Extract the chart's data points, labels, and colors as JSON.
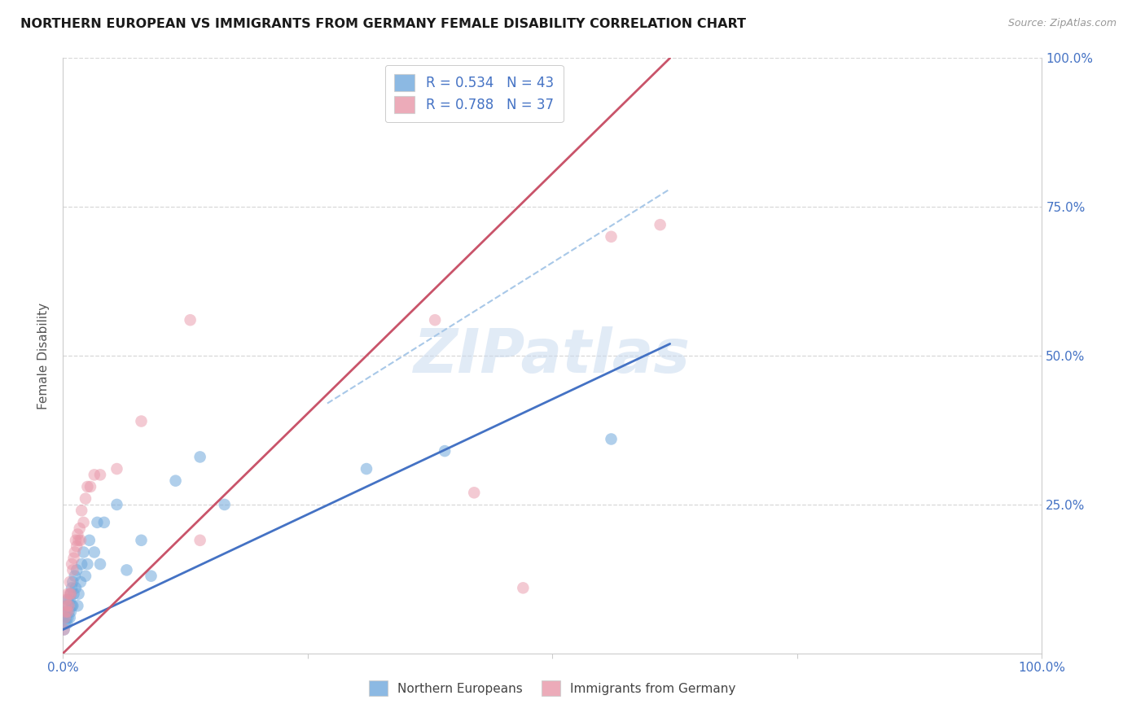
{
  "title": "NORTHERN EUROPEAN VS IMMIGRANTS FROM GERMANY FEMALE DISABILITY CORRELATION CHART",
  "source": "Source: ZipAtlas.com",
  "ylabel": "Female Disability",
  "watermark": "ZIPatlas",
  "legend1_label": "R = 0.534   N = 43",
  "legend2_label": "R = 0.788   N = 37",
  "blue_color": "#6fa8dc",
  "pink_color": "#e896a8",
  "blue_line_color": "#4472c4",
  "pink_line_color": "#c9546a",
  "dashed_line_color": "#a8c8e8",
  "axis_label_color": "#4472c4",
  "blue_scatter_x": [
    0.001,
    0.002,
    0.002,
    0.003,
    0.004,
    0.004,
    0.005,
    0.005,
    0.006,
    0.007,
    0.007,
    0.008,
    0.008,
    0.009,
    0.009,
    0.01,
    0.01,
    0.011,
    0.012,
    0.013,
    0.014,
    0.015,
    0.016,
    0.018,
    0.019,
    0.021,
    0.023,
    0.025,
    0.027,
    0.032,
    0.035,
    0.038,
    0.042,
    0.055,
    0.065,
    0.08,
    0.09,
    0.115,
    0.14,
    0.165,
    0.31,
    0.39,
    0.56
  ],
  "blue_scatter_y": [
    0.04,
    0.05,
    0.07,
    0.06,
    0.05,
    0.08,
    0.06,
    0.09,
    0.07,
    0.06,
    0.09,
    0.07,
    0.1,
    0.08,
    0.11,
    0.08,
    0.12,
    0.1,
    0.13,
    0.11,
    0.14,
    0.08,
    0.1,
    0.12,
    0.15,
    0.17,
    0.13,
    0.15,
    0.19,
    0.17,
    0.22,
    0.15,
    0.22,
    0.25,
    0.14,
    0.19,
    0.13,
    0.29,
    0.33,
    0.25,
    0.31,
    0.34,
    0.36
  ],
  "pink_scatter_x": [
    0.001,
    0.002,
    0.003,
    0.003,
    0.004,
    0.005,
    0.005,
    0.006,
    0.007,
    0.007,
    0.008,
    0.009,
    0.01,
    0.011,
    0.012,
    0.013,
    0.014,
    0.015,
    0.016,
    0.017,
    0.018,
    0.019,
    0.021,
    0.023,
    0.025,
    0.028,
    0.032,
    0.038,
    0.055,
    0.08,
    0.13,
    0.14,
    0.38,
    0.42,
    0.47,
    0.56,
    0.61
  ],
  "pink_scatter_y": [
    0.04,
    0.06,
    0.07,
    0.09,
    0.08,
    0.07,
    0.1,
    0.08,
    0.1,
    0.12,
    0.1,
    0.15,
    0.14,
    0.16,
    0.17,
    0.19,
    0.18,
    0.2,
    0.19,
    0.21,
    0.19,
    0.24,
    0.22,
    0.26,
    0.28,
    0.28,
    0.3,
    0.3,
    0.31,
    0.39,
    0.56,
    0.19,
    0.56,
    0.27,
    0.11,
    0.7,
    0.72
  ],
  "blue_line_x": [
    0.0,
    0.62
  ],
  "blue_line_y": [
    0.04,
    0.52
  ],
  "pink_line_x": [
    0.0,
    0.62
  ],
  "pink_line_y": [
    0.0,
    1.0
  ],
  "dashed_line_x": [
    0.27,
    0.62
  ],
  "dashed_line_y": [
    0.42,
    0.78
  ],
  "xlim": [
    0.0,
    1.0
  ],
  "ylim": [
    0.0,
    1.0
  ],
  "background_color": "#ffffff",
  "grid_color": "#d8d8d8"
}
